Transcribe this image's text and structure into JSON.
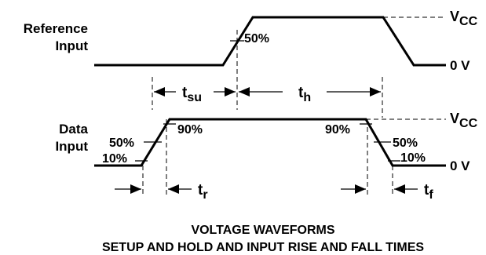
{
  "signals": {
    "reference": {
      "label_line1": "Reference",
      "label_line2": "Input"
    },
    "data": {
      "label_line1": "Data",
      "label_line2": "Input"
    }
  },
  "levels": {
    "vcc_main": "V",
    "vcc_sub": "CC",
    "zero": "0 V"
  },
  "thresholds": {
    "ref_50": "50%",
    "data_50_left": "50%",
    "data_10_left": "10%",
    "data_90_left": "90%",
    "data_90_right": "90%",
    "data_50_right": "50%",
    "data_10_right": "10%"
  },
  "timing": {
    "tsu_main": "t",
    "tsu_sub": "su",
    "th_main": "t",
    "th_sub": "h",
    "tr_main": "t",
    "tr_sub": "r",
    "tf_main": "t",
    "tf_sub": "f"
  },
  "caption": {
    "line1": "VOLTAGE WAVEFORMS",
    "line2": "SETUP AND HOLD AND INPUT RISE AND FALL TIMES"
  }
}
